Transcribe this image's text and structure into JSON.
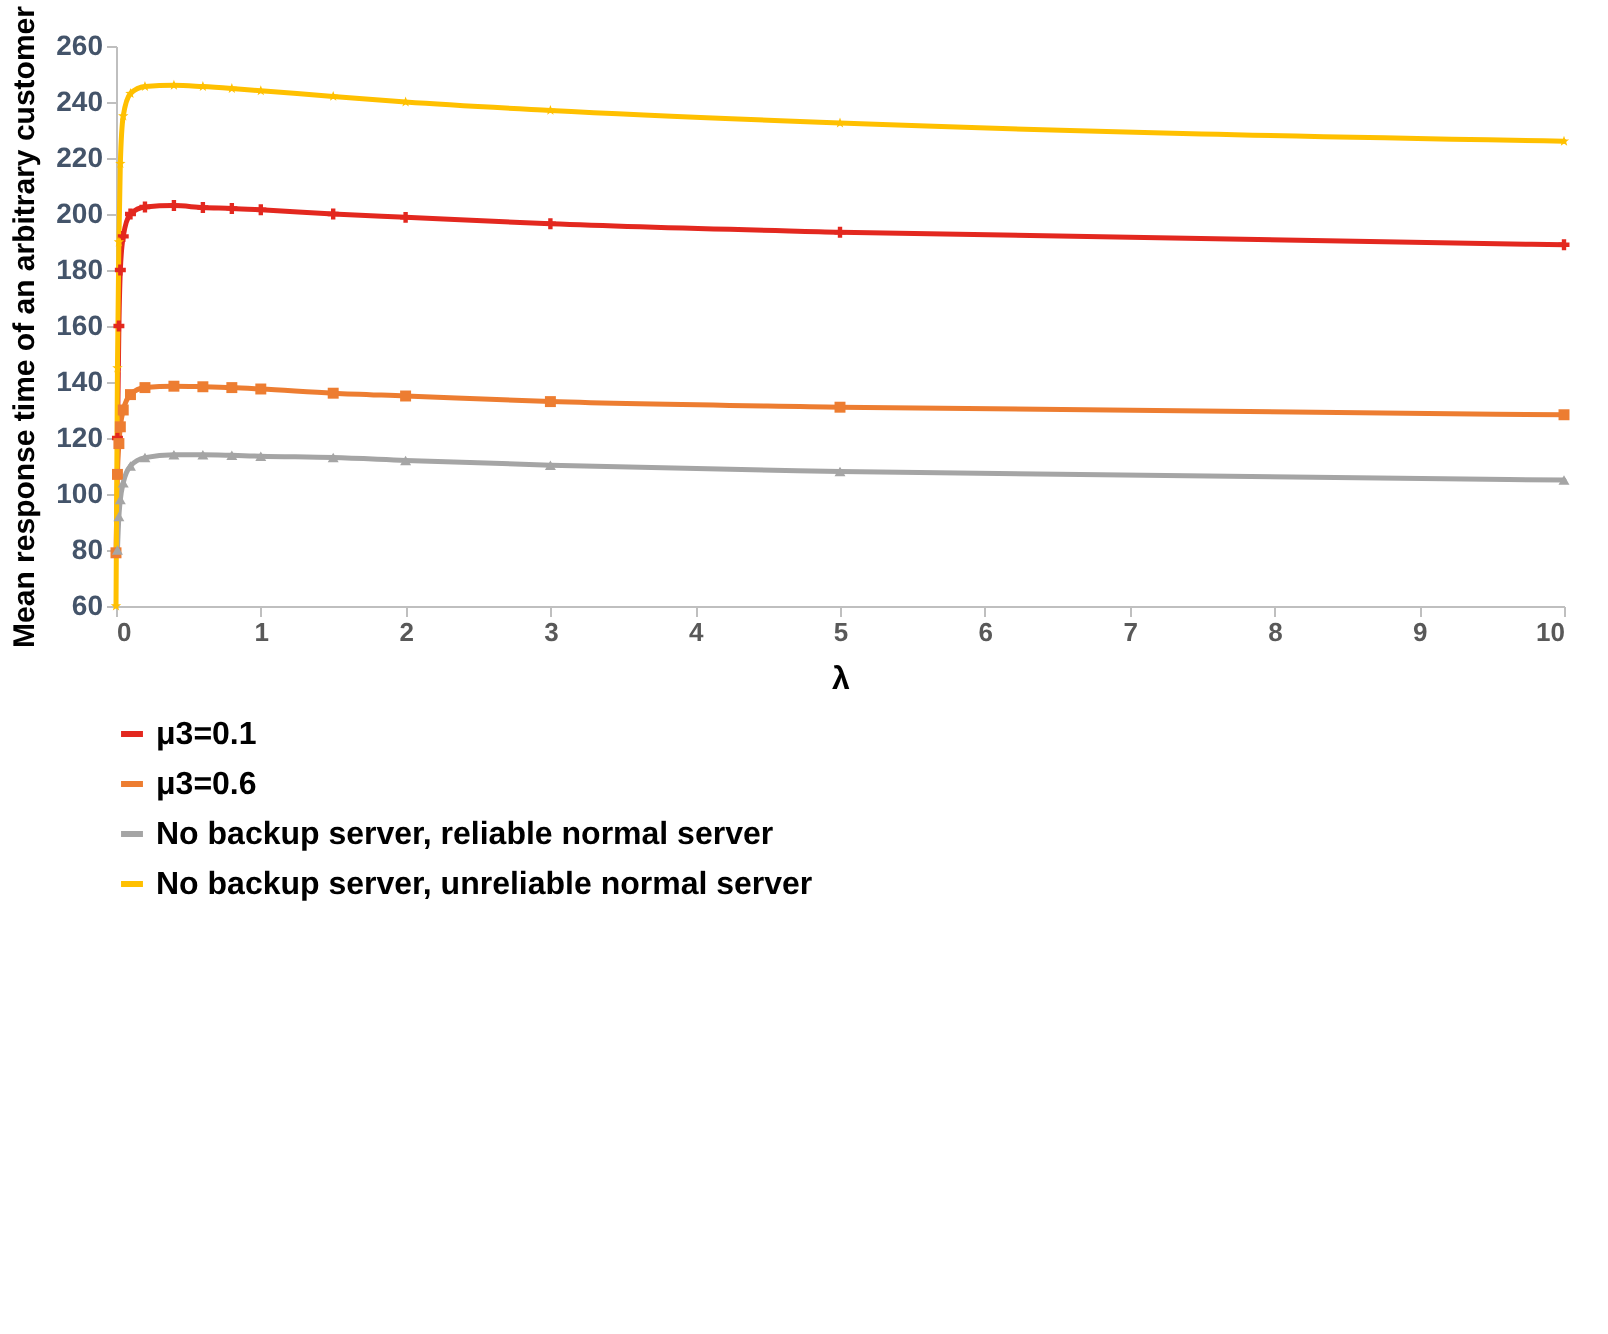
{
  "chart_data": {
    "type": "line",
    "xlabel": "λ",
    "ylabel": "Mean response time of an arbitrary customer",
    "xlim": [
      0,
      10
    ],
    "xticks": [
      0,
      1,
      2,
      3,
      4,
      5,
      6,
      7,
      8,
      9,
      10
    ],
    "ylim": [
      60,
      260
    ],
    "yticks": [
      60,
      80,
      100,
      120,
      140,
      160,
      180,
      200,
      220,
      240,
      260
    ],
    "grid": false,
    "legend": "bottom",
    "series": [
      {
        "name": "μ3=0.1",
        "color": "#e3281f",
        "marker": "cross",
        "x": [
          0.01,
          0.02,
          0.03,
          0.05,
          0.1,
          0.2,
          0.4,
          0.6,
          0.8,
          1,
          1.5,
          2,
          3,
          5,
          10
        ],
        "values": [
          120,
          160,
          180,
          192,
          200,
          202.5,
          203,
          202.3,
          202,
          201.5,
          200,
          198.8,
          196.5,
          193.5,
          189
        ]
      },
      {
        "name": "μ3=0.6",
        "color": "#ed7d31",
        "marker": "square",
        "x": [
          0,
          0.01,
          0.02,
          0.03,
          0.05,
          0.1,
          0.2,
          0.4,
          0.6,
          0.8,
          1,
          1.5,
          2,
          3,
          5,
          10
        ],
        "values": [
          79,
          107,
          118,
          124,
          130,
          135.5,
          138,
          138.5,
          138.3,
          138,
          137.5,
          136,
          135,
          133,
          131,
          128.3
        ]
      },
      {
        "name": "No backup server, reliable normal server",
        "color": "#a5a5a5",
        "marker": "triangle",
        "x": [
          0.01,
          0.02,
          0.03,
          0.05,
          0.1,
          0.2,
          0.4,
          0.6,
          0.8,
          1,
          1.5,
          2,
          3,
          5,
          10
        ],
        "values": [
          80,
          92,
          98,
          104,
          110,
          113,
          114,
          114,
          113.8,
          113.5,
          113,
          112,
          110.3,
          108,
          105
        ]
      },
      {
        "name": "No backup server, unreliable normal server",
        "color": "#ffc000",
        "marker": "star",
        "x": [
          0,
          0.01,
          0.02,
          0.03,
          0.05,
          0.1,
          0.2,
          0.4,
          0.6,
          0.8,
          1,
          1.5,
          2,
          3,
          5,
          10
        ],
        "values": [
          60,
          145,
          190,
          218,
          235,
          243,
          245.5,
          246,
          245.5,
          244.8,
          244,
          242,
          240,
          237,
          232.5,
          226
        ]
      }
    ]
  }
}
